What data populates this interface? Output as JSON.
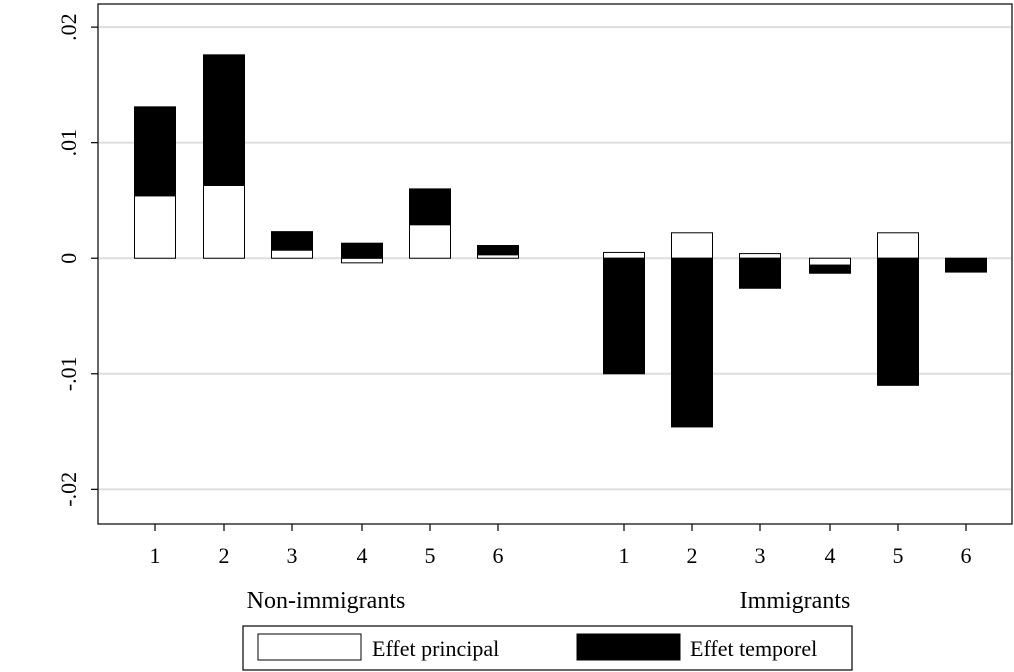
{
  "chart_data": {
    "type": "bar",
    "stacked_offset": true,
    "ylim": [
      -0.023,
      0.022
    ],
    "yticks": [
      {
        "value": 0.02,
        "label": ".02"
      },
      {
        "value": 0.01,
        "label": ".01"
      },
      {
        "value": 0,
        "label": "0"
      },
      {
        "value": -0.01,
        "label": "-.01"
      },
      {
        "value": -0.02,
        "label": "-.02"
      }
    ],
    "grid": true,
    "groups": [
      {
        "label": "Non-immigrants",
        "categories": [
          "1",
          "2",
          "3",
          "4",
          "5",
          "6"
        ],
        "principal": [
          0.0054,
          0.0063,
          0.0007,
          -0.0004,
          0.0029,
          0.0003
        ],
        "temporel": [
          0.0077,
          0.0113,
          0.0016,
          0.0013,
          0.0031,
          0.0008
        ]
      },
      {
        "label": "Immigrants",
        "categories": [
          "1",
          "2",
          "3",
          "4",
          "5",
          "6"
        ],
        "principal": [
          0.0005,
          0.0022,
          0.0004,
          -0.0006,
          0.0022,
          0.0
        ],
        "temporel": [
          -0.01,
          -0.0146,
          -0.0026,
          -0.0007,
          -0.011,
          -0.0012
        ]
      }
    ],
    "series": [
      {
        "name": "Effet principal",
        "color": "#ffffff"
      },
      {
        "name": "Effet temporel",
        "color": "#000000"
      }
    ],
    "legend_position": "bottom"
  }
}
